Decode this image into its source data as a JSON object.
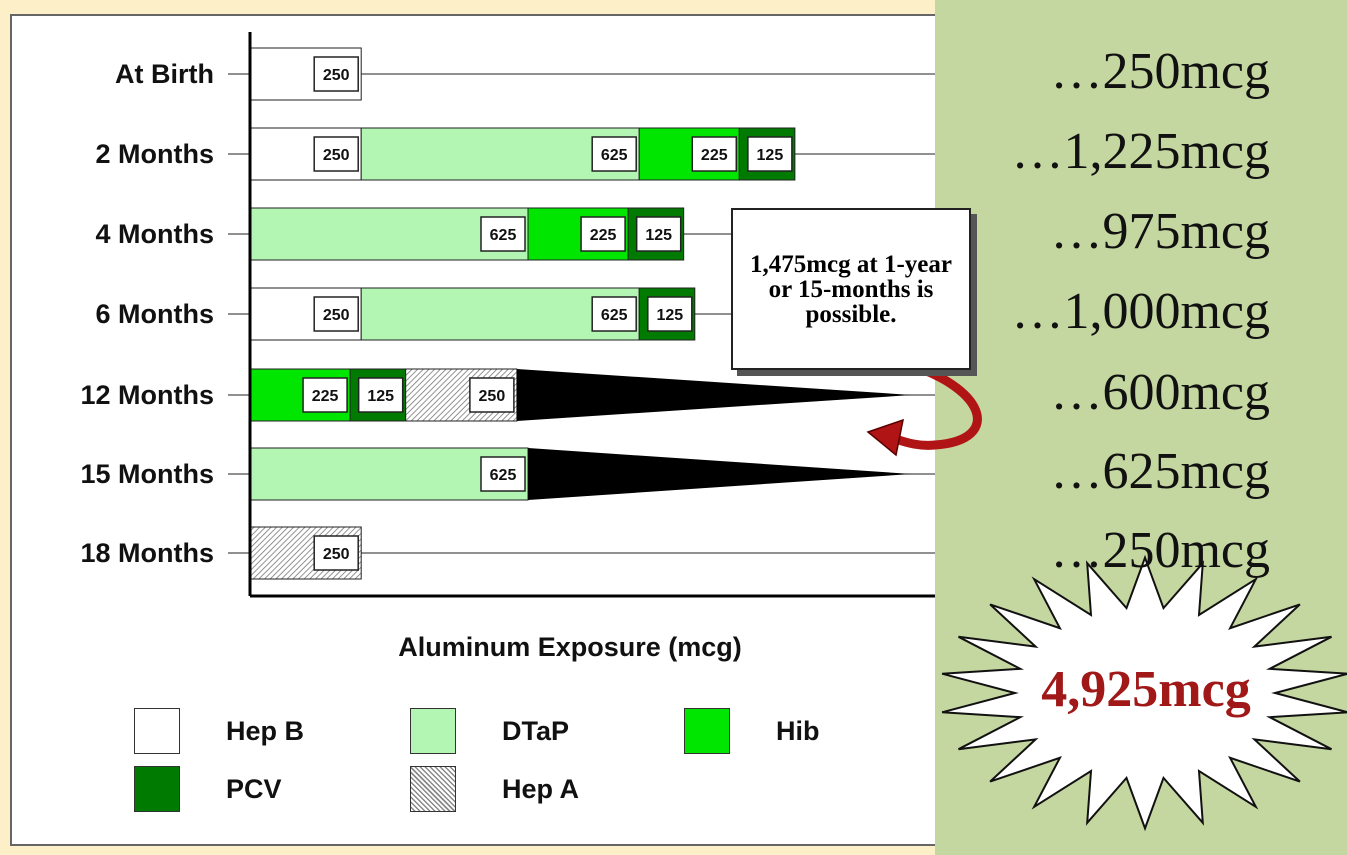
{
  "chart_data": {
    "type": "bar",
    "stacked": true,
    "orientation": "horizontal",
    "xlabel": "Aluminum Exposure (mcg)",
    "categories": [
      "At Birth",
      "2 Months",
      "4 Months",
      "6 Months",
      "12 Months",
      "15 Months",
      "18 Months"
    ],
    "series": [
      {
        "name": "Hep B",
        "values": [
          250,
          250,
          0,
          250,
          0,
          0,
          0
        ]
      },
      {
        "name": "DTaP",
        "values": [
          0,
          625,
          625,
          625,
          0,
          625,
          0
        ]
      },
      {
        "name": "Hib",
        "values": [
          0,
          225,
          225,
          0,
          225,
          0,
          0
        ]
      },
      {
        "name": "PCV",
        "values": [
          0,
          125,
          125,
          125,
          125,
          0,
          0
        ]
      },
      {
        "name": "Hep A",
        "values": [
          0,
          0,
          0,
          0,
          250,
          0,
          250
        ]
      }
    ],
    "colors": {
      "Hep B": "#ffffff",
      "DTaP": "#b3f5b3",
      "Hib": "#00e600",
      "PCV": "#007a00",
      "Hep A": "hatch"
    },
    "legend": [
      "Hep B",
      "DTaP",
      "Hib",
      "PCV",
      "Hep A"
    ],
    "legend_position": "bottom",
    "totals": [
      "…250mcg",
      "…1,225mcg",
      "…975mcg",
      "…1,000mcg",
      "…600mcg",
      "…625mcg",
      "…250mcg"
    ],
    "callout": "1,475mcg at 1-year or 15-months is possible.",
    "grand_total": "4,925mcg"
  }
}
